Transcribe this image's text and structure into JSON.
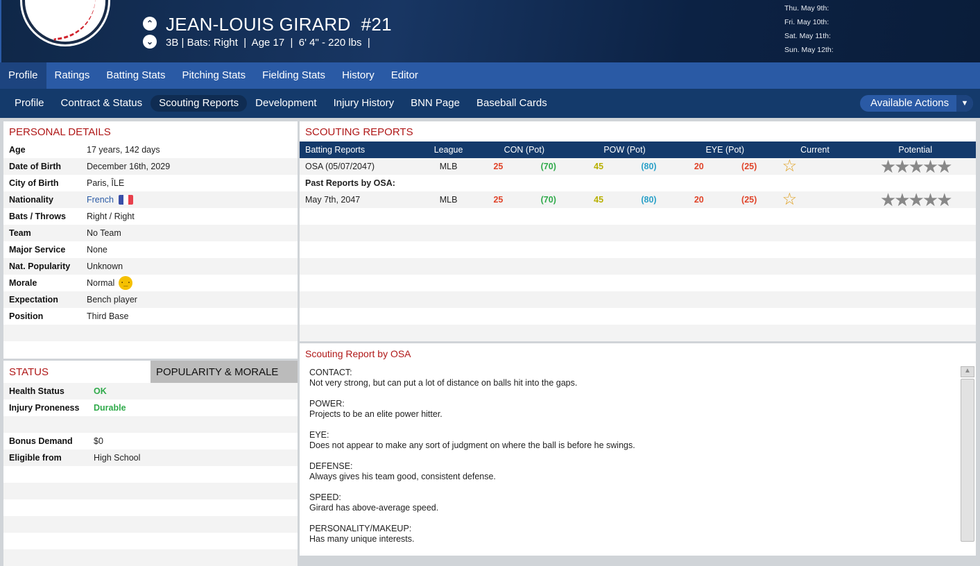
{
  "header": {
    "name": "JEAN-LOUIS GIRARD",
    "number": "#21",
    "info": "3B | Bats: Right  |  Age 17  |  6' 4\" - 220 lbs  |",
    "dates": [
      "Thu. May 9th:",
      "Fri. May 10th:",
      "Sat. May 11th:",
      "Sun. May 12th:"
    ]
  },
  "tabs": [
    "Profile",
    "Ratings",
    "Batting Stats",
    "Pitching Stats",
    "Fielding Stats",
    "History",
    "Editor"
  ],
  "subtabs": [
    "Profile",
    "Contract & Status",
    "Scouting Reports",
    "Development",
    "Injury History",
    "BNN Page",
    "Baseball Cards"
  ],
  "actions_label": "Available Actions",
  "personal": {
    "title": "PERSONAL DETAILS",
    "rows": [
      {
        "label": "Age",
        "value": "17 years, 142 days"
      },
      {
        "label": "Date of Birth",
        "value": "December 16th, 2029"
      },
      {
        "label": "City of Birth",
        "value": "Paris, ÎLE"
      },
      {
        "label": "Nationality",
        "value": "French"
      },
      {
        "label": "Bats / Throws",
        "value": "Right / Right"
      },
      {
        "label": "Team",
        "value": "No Team"
      },
      {
        "label": "Major Service",
        "value": "None"
      },
      {
        "label": "Nat. Popularity",
        "value": "Unknown"
      },
      {
        "label": "Morale",
        "value": "Normal"
      },
      {
        "label": "Expectation",
        "value": "Bench player"
      },
      {
        "label": "Position",
        "value": "Third Base"
      }
    ]
  },
  "status": {
    "title": "STATUS",
    "tab2": "POPULARITY & MORALE",
    "rows": [
      {
        "label": "Health Status",
        "value": "OK"
      },
      {
        "label": "Injury Proneness",
        "value": "Durable"
      },
      {
        "label": "",
        "value": ""
      },
      {
        "label": "Bonus Demand",
        "value": "$0"
      },
      {
        "label": "Eligible from",
        "value": "High School"
      }
    ]
  },
  "scouting": {
    "title": "SCOUTING REPORTS",
    "headers": [
      "Batting Reports",
      "League",
      "CON (Pot)",
      "POW (Pot)",
      "EYE (Pot)",
      "Current",
      "Potential"
    ],
    "rows": [
      {
        "name": "OSA (05/07/2047)",
        "league": "MLB",
        "con": "25",
        "con_pot": "(70)",
        "pow": "45",
        "pow_pot": "(80)",
        "eye": "20",
        "eye_pot": "(25)",
        "current_stars": 0.5,
        "potential_stars": 5
      },
      {
        "section": "Past Reports by OSA:"
      },
      {
        "name": "May 7th, 2047",
        "league": "MLB",
        "con": "25",
        "con_pot": "(70)",
        "pow": "45",
        "pow_pot": "(80)",
        "eye": "20",
        "eye_pot": "(25)",
        "current_stars": 0.5,
        "potential_stars": 5
      }
    ]
  },
  "report": {
    "title": "Scouting Report by OSA",
    "sections": [
      {
        "h": "CONTACT:",
        "t": "Not very strong, but can put a lot of distance on balls hit into the gaps."
      },
      {
        "h": "POWER:",
        "t": "Projects to be an elite power hitter."
      },
      {
        "h": "EYE:",
        "t": "Does not appear to make any sort of judgment on where the ball is before he swings."
      },
      {
        "h": "DEFENSE:",
        "t": "Always gives his team good, consistent defense."
      },
      {
        "h": "SPEED:",
        "t": "Girard has above-average speed."
      },
      {
        "h": "PERSONALITY/MAKEUP:",
        "t": "Has many unique interests."
      }
    ]
  }
}
